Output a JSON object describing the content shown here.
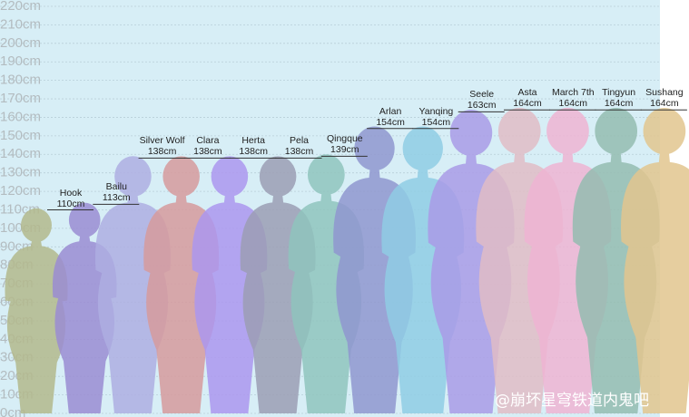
{
  "chart_data": {
    "type": "bar",
    "categories": [
      "Hook",
      "Bailu",
      "Silver Wolf",
      "Clara",
      "Herta",
      "Pela",
      "Qingque",
      "Arlan",
      "Yanqing",
      "Seele",
      "Asta",
      "March 7th",
      "Tingyun",
      "Sushang"
    ],
    "values": [
      110,
      113,
      138,
      138,
      138,
      138,
      139,
      154,
      154,
      163,
      164,
      164,
      164,
      164
    ],
    "value_labels": [
      "110cm",
      "113cm",
      "138cm",
      "138cm",
      "138cm",
      "138cm",
      "139cm",
      "154cm",
      "154cm",
      "163cm",
      "164cm",
      "164cm",
      "164cm",
      "164cm"
    ],
    "colors": [
      "#b3b88c",
      "#9a8cd2",
      "#aeaee2",
      "#d69a9c",
      "#ab97ee",
      "#9b9db4",
      "#8fc4bd",
      "#8f96cf",
      "#8fcce4",
      "#a99be6",
      "#e0bcc6",
      "#eeb4d2",
      "#94bcb0",
      "#e2c68e"
    ],
    "ylim": [
      0,
      220
    ],
    "yticks": [
      {
        "value": 0,
        "label": "0cm"
      },
      {
        "value": 10,
        "label": "10cm"
      },
      {
        "value": 20,
        "label": "20cm"
      },
      {
        "value": 30,
        "label": "30cm"
      },
      {
        "value": 40,
        "label": "40cm"
      },
      {
        "value": 50,
        "label": "50cm"
      },
      {
        "value": 60,
        "label": "60cm"
      },
      {
        "value": 70,
        "label": "70cm"
      },
      {
        "value": 80,
        "label": "80cm"
      },
      {
        "value": 90,
        "label": "90cm"
      },
      {
        "value": 100,
        "label": "100cm"
      },
      {
        "value": 110,
        "label": "110cm"
      },
      {
        "value": 120,
        "label": "120cm"
      },
      {
        "value": 130,
        "label": "130cm"
      },
      {
        "value": 140,
        "label": "140cm"
      },
      {
        "value": 150,
        "label": "150cm"
      },
      {
        "value": 160,
        "label": "160cm"
      },
      {
        "value": 170,
        "label": "170cm"
      },
      {
        "value": 180,
        "label": "180cm"
      },
      {
        "value": 190,
        "label": "190cm"
      },
      {
        "value": 200,
        "label": "200cm"
      },
      {
        "value": 210,
        "label": "210cm"
      },
      {
        "value": 220,
        "label": "220cm"
      }
    ],
    "grid": true,
    "watermark": "@崩坏星穹铁道内鬼吧"
  }
}
